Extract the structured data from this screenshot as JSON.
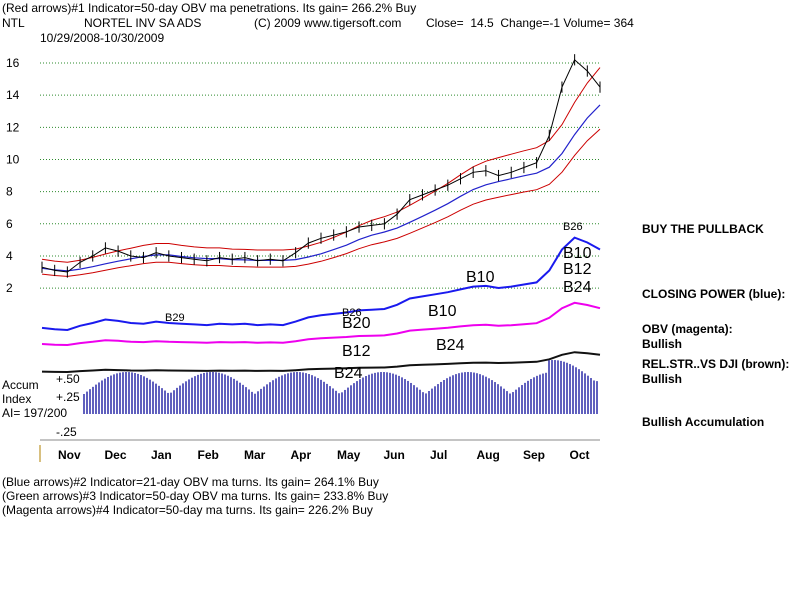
{
  "header": {
    "line1_a": "(Red arrows)#1 Indicator=50-day OBV ma penetrations. Its gain= 266.2% Buy",
    "line2_ticker": "NTL",
    "line2_name": "NORTEL INV SA ADS",
    "line2_copy": "(C) 2009 www.tigersoft.com",
    "line2_stats": "Close=  14.5  Change=-1 Volume= 364",
    "date_range": "10/29/2008-10/30/2009"
  },
  "footer": {
    "line1": "(Blue arrows)#2 Indicator=21-day OBV ma turns. Its gain= 264.1% Buy",
    "line2": "(Green arrows)#3 Indicator=50-day OBV ma turns. Its gain= 233.8% Buy",
    "line3": "(Magenta arrows)#4 Indicator=50-day ma turns. Its gain= 226.2% Buy"
  },
  "right_panel": {
    "buy_pullback": "BUY THE PULLBACK",
    "closing_power": "CLOSING POWER (blue):",
    "obv_label": "OBV (magenta):",
    "obv_value": "Bullish",
    "relstr_label": "REL.STR..VS DJI (brown):",
    "relstr_value": "Bullish",
    "accum_text": "Bullish Accumulation"
  },
  "accum_labels": {
    "accum": "Accum",
    "index": "Index",
    "ai": "AI= 197/200",
    "p50": "+.50",
    "p25": "+.25",
    "m25": "-.25"
  },
  "colors": {
    "price": "#000000",
    "bands": "#cc0000",
    "ma": "#2222cc",
    "closing_power": "#1a1aee",
    "obv": "#ee00ee",
    "relstr": "#111111",
    "accum_bars": "#2a2aa8",
    "red_arrow": "#dd0000",
    "blue_arrow": "#0000dd",
    "grid": "#2e8b2e"
  },
  "chart_data": {
    "type": "line",
    "title": "NORTEL INV SA ADS",
    "x_months": [
      "Nov",
      "Dec",
      "Jan",
      "Feb",
      "Mar",
      "Apr",
      "May",
      "Jun",
      "Jul",
      "Aug",
      "Sep",
      "Oct"
    ],
    "y_ticks": [
      16,
      14,
      12,
      10,
      8,
      6,
      4,
      2
    ],
    "ylim": [
      2,
      17
    ],
    "close_series": [
      3.3,
      3.1,
      3.0,
      3.6,
      4.0,
      4.5,
      4.3,
      4.0,
      3.9,
      4.2,
      4.0,
      3.9,
      3.8,
      3.7,
      3.9,
      3.8,
      3.9,
      3.7,
      3.8,
      3.7,
      4.2,
      4.8,
      5.1,
      5.3,
      5.5,
      5.8,
      5.9,
      6.0,
      6.6,
      7.5,
      7.8,
      8.1,
      8.4,
      8.8,
      9.2,
      9.3,
      9.0,
      9.2,
      9.5,
      9.8,
      11.5,
      14.5,
      16.2,
      15.5,
      14.5
    ],
    "signal_labels": [
      {
        "text": "B29"
      },
      {
        "text": "B26"
      },
      {
        "text": "B20"
      },
      {
        "text": "B12"
      },
      {
        "text": "B24"
      },
      {
        "text": "B10"
      },
      {
        "text": "B24"
      },
      {
        "text": "B10"
      },
      {
        "text": "B26"
      },
      {
        "text": "B10"
      },
      {
        "text": "B12"
      },
      {
        "text": "B24"
      }
    ]
  }
}
